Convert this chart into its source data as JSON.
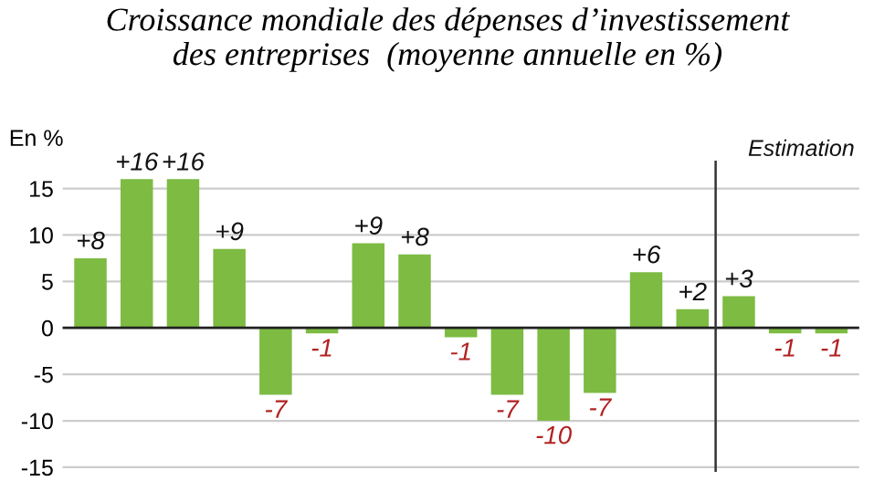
{
  "chart_data": {
    "type": "bar",
    "title": "Croissance mondiale des dépenses d’investissement\ndes entreprises  (moyenne annuelle en %)",
    "ylabel": "En %",
    "categories": [
      null,
      null,
      null,
      null,
      null,
      null,
      null,
      null,
      null,
      null,
      null,
      null,
      null,
      null,
      null,
      null,
      null
    ],
    "values": [
      7.5,
      16,
      16,
      8.5,
      -7.2,
      -0.6,
      9.1,
      7.9,
      -1,
      -7.2,
      -10,
      -7,
      6,
      2,
      3.4,
      -0.6,
      -0.6
    ],
    "value_labels": [
      "+8",
      "+16",
      "+16",
      "+9",
      "-7",
      "-1",
      "+9",
      "+8",
      "-1",
      "-7",
      "-10",
      "-7",
      "+6",
      "+2",
      "+3",
      "-1",
      "-1"
    ],
    "color": "#7dbb42",
    "ylim": [
      -15.5,
      18
    ],
    "yticks": [
      -15,
      -10,
      -5,
      0,
      5,
      10,
      15
    ],
    "grid": "y",
    "annotations": [
      "Estimation"
    ]
  }
}
